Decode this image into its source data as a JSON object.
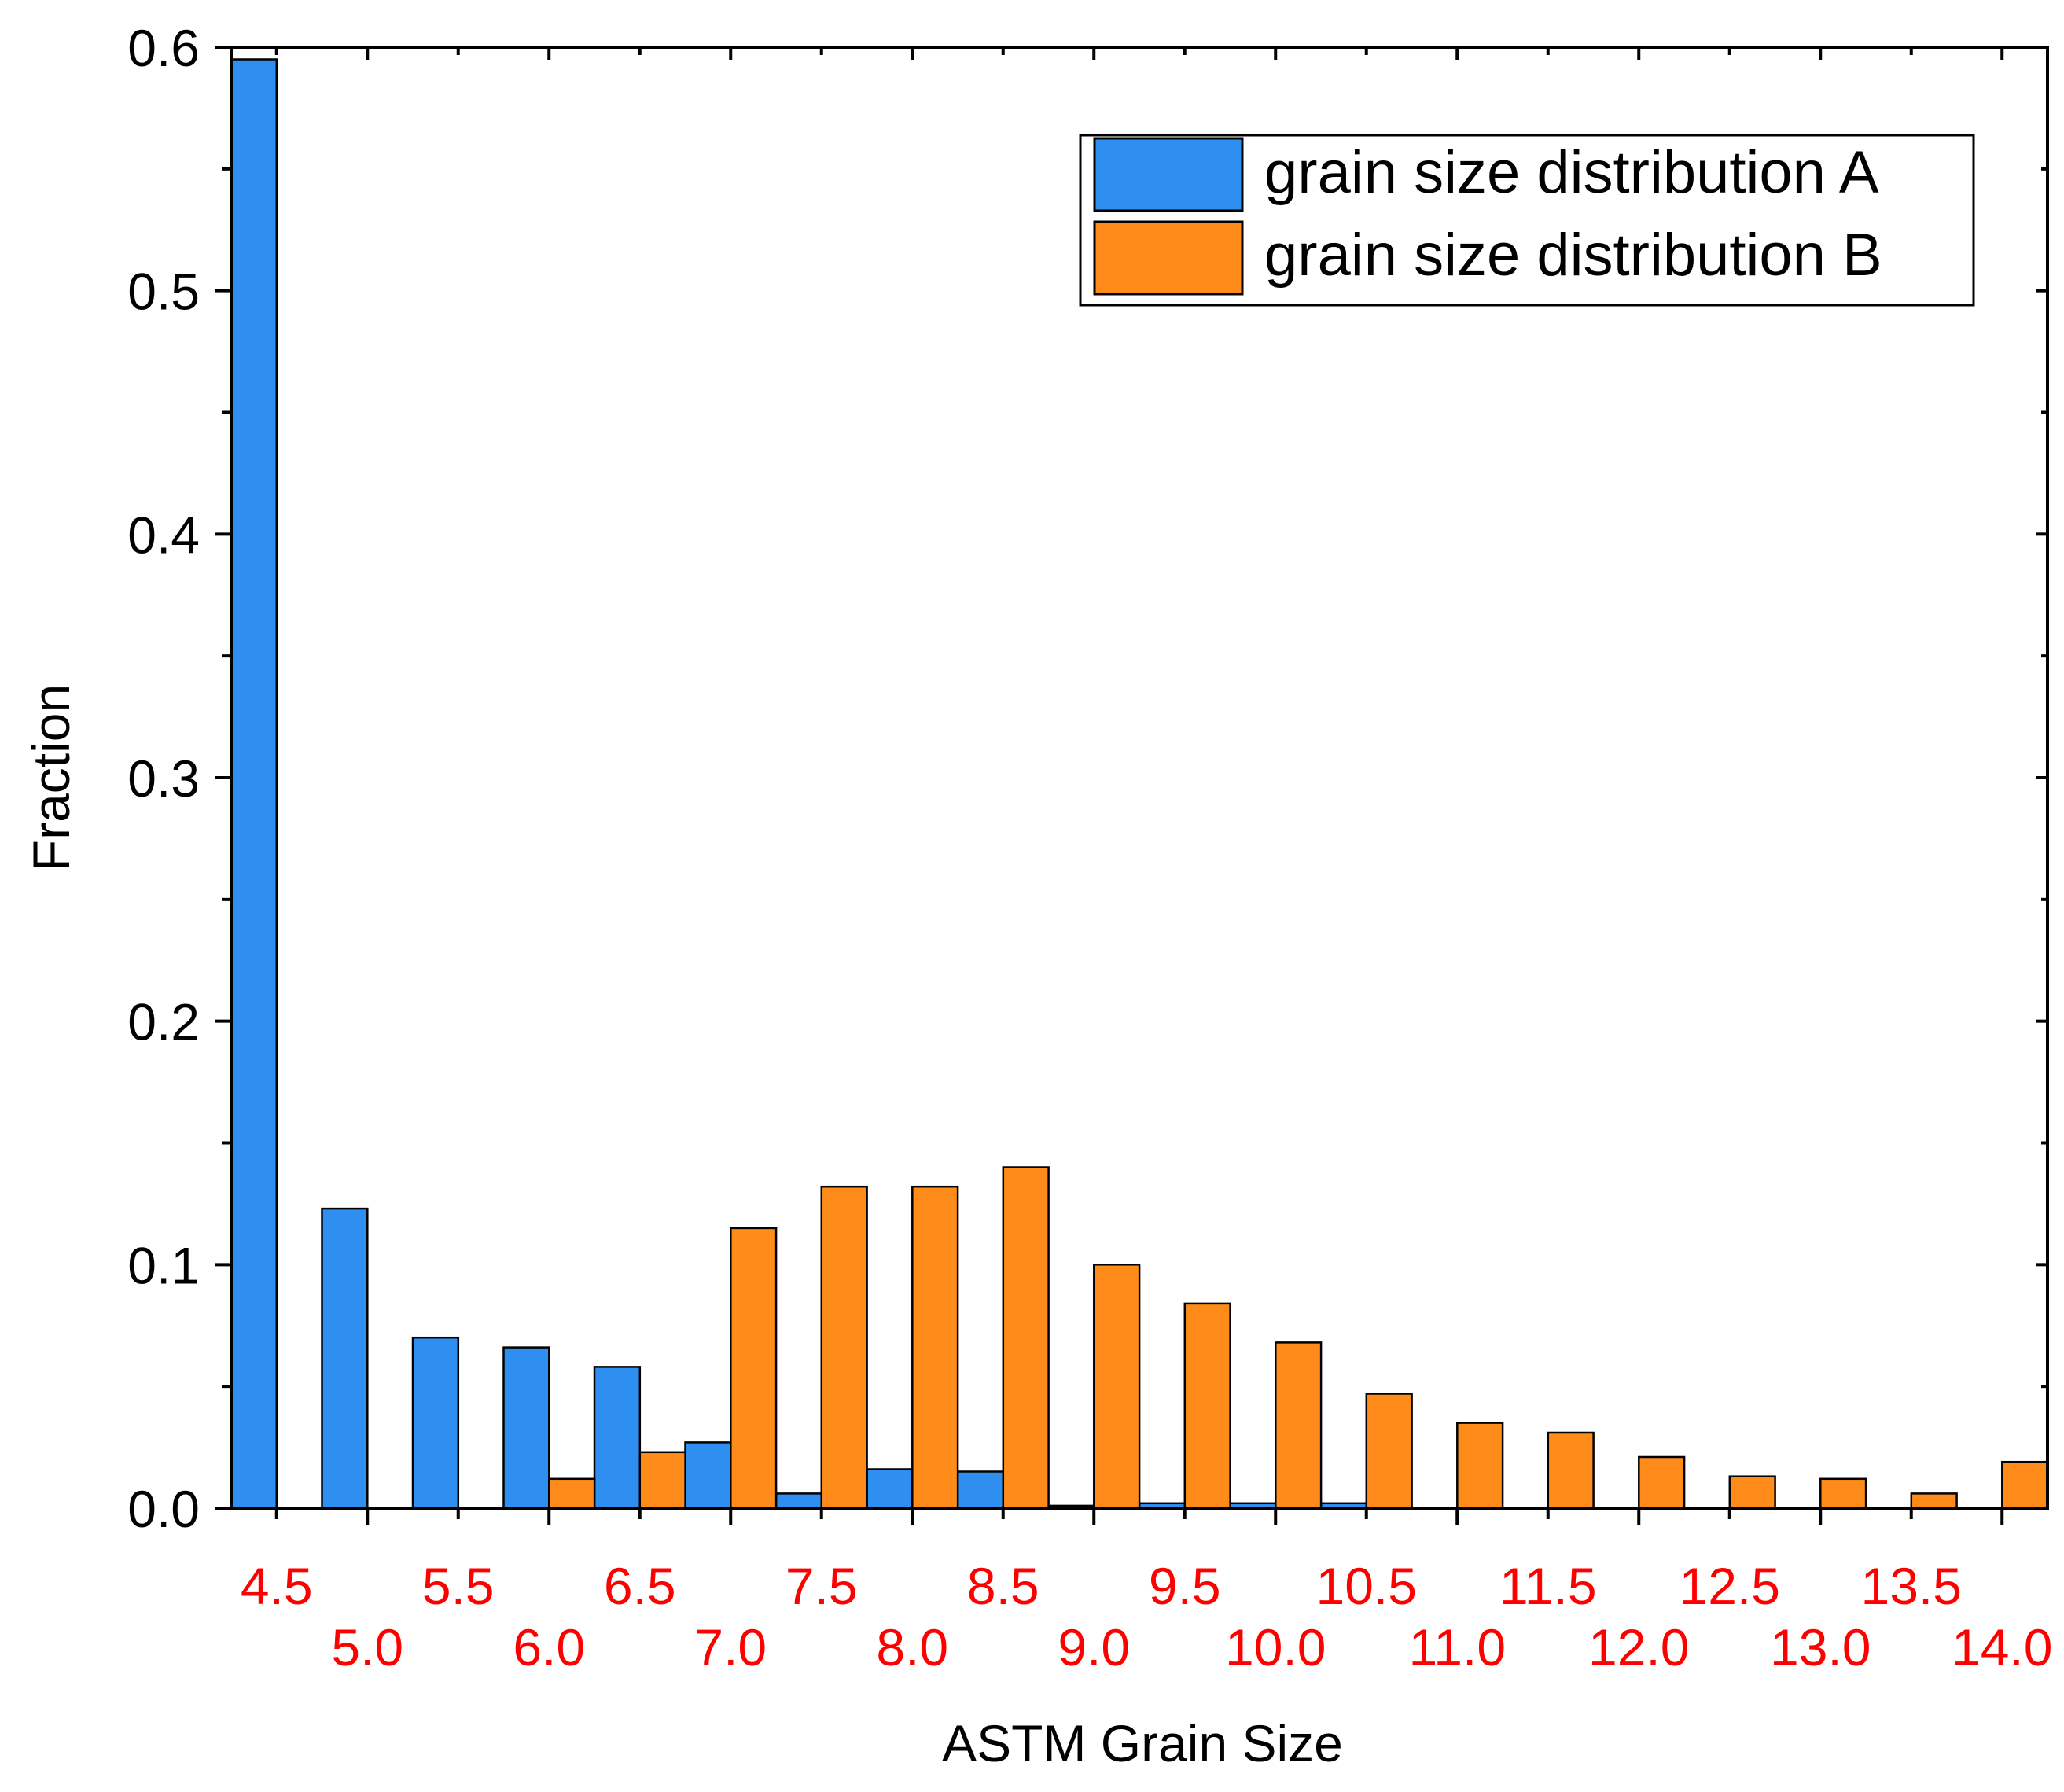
{
  "chart_data": {
    "type": "bar",
    "title": "",
    "xlabel": "ASTM Grain Size",
    "ylabel": "Fraction",
    "ylim": [
      0,
      0.6
    ],
    "yticks": [
      "0.0",
      "0.1",
      "0.2",
      "0.3",
      "0.4",
      "0.5",
      "0.6"
    ],
    "xlim": [
      4.25,
      14.25
    ],
    "categories": [
      4.5,
      5.0,
      5.5,
      6.0,
      6.5,
      7.0,
      7.5,
      8.0,
      8.5,
      9.0,
      9.5,
      10.0,
      10.5,
      11.0,
      11.5,
      12.0,
      12.5,
      13.0,
      13.5,
      14.0
    ],
    "category_labels": [
      "4.5",
      "5.0",
      "5.5",
      "6.0",
      "6.5",
      "7.0",
      "7.5",
      "8.0",
      "8.5",
      "9.0",
      "9.5",
      "10.0",
      "10.5",
      "11.0",
      "11.5",
      "12.0",
      "12.5",
      "13.0",
      "13.5",
      "14.0"
    ],
    "tick_label_color": "#ff0000",
    "grid": false,
    "legend_position": "top-right",
    "series": [
      {
        "name": "grain size distribution A",
        "color": "#2e8ff0",
        "values": [
          0.595,
          0.123,
          0.07,
          0.066,
          0.058,
          0.027,
          0.006,
          0.016,
          0.015,
          0.001,
          0.002,
          0.002,
          0.002,
          0,
          0,
          0,
          0,
          0,
          0,
          0
        ]
      },
      {
        "name": "grain size distribution B",
        "color": "#ff8c1a",
        "values": [
          0,
          0,
          0,
          0.012,
          0.023,
          0.115,
          0.132,
          0.132,
          0.14,
          0.1,
          0.084,
          0.068,
          0.047,
          0.035,
          0.031,
          0.021,
          0.013,
          0.012,
          0.006,
          0.019
        ]
      }
    ]
  }
}
